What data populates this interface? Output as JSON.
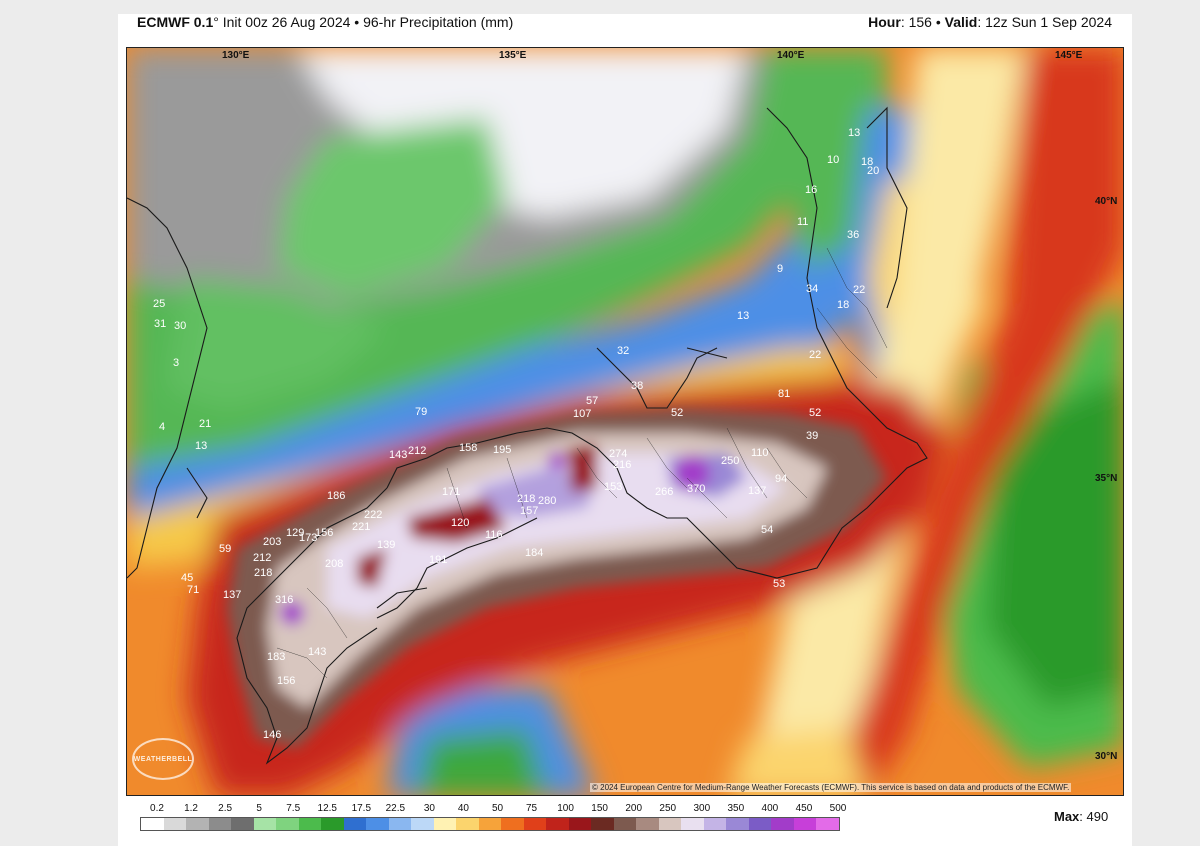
{
  "header": {
    "model": "ECMWF 0.1",
    "degree": "°",
    "init": "Init 00z 26 Aug 2024",
    "bullet": "•",
    "product": "96-hr Precipitation (mm)",
    "hour_label": "Hour",
    "hour_value": "156",
    "valid_label": "Valid",
    "valid_value": "12z Sun 1 Sep 2024"
  },
  "coords": {
    "lon_130": "130°E",
    "lon_135": "135°E",
    "lon_140": "140°E",
    "lon_145": "145°E",
    "lat_40": "40°N",
    "lat_35": "35°N",
    "lat_30": "30°N"
  },
  "map_values": [
    {
      "id": "v13a",
      "text": "13"
    },
    {
      "id": "v10",
      "text": "10"
    },
    {
      "id": "v18a",
      "text": "18"
    },
    {
      "id": "v20",
      "text": "20"
    },
    {
      "id": "v16",
      "text": "16"
    },
    {
      "id": "v11",
      "text": "11"
    },
    {
      "id": "v36",
      "text": "36"
    },
    {
      "id": "v9",
      "text": "9"
    },
    {
      "id": "v34",
      "text": "34"
    },
    {
      "id": "v22a",
      "text": "22"
    },
    {
      "id": "v18b",
      "text": "18"
    },
    {
      "id": "v13b",
      "text": "13"
    },
    {
      "id": "v22b",
      "text": "22"
    },
    {
      "id": "v25",
      "text": "25"
    },
    {
      "id": "v31",
      "text": "31"
    },
    {
      "id": "v30",
      "text": "30"
    },
    {
      "id": "v3",
      "text": "3"
    },
    {
      "id": "v32",
      "text": "32"
    },
    {
      "id": "v38",
      "text": "38"
    },
    {
      "id": "v81",
      "text": "81"
    },
    {
      "id": "v57",
      "text": "57"
    },
    {
      "id": "v107",
      "text": "107"
    },
    {
      "id": "v52a",
      "text": "52"
    },
    {
      "id": "v52b",
      "text": "52"
    },
    {
      "id": "v79",
      "text": "79"
    },
    {
      "id": "v39",
      "text": "39"
    },
    {
      "id": "v21",
      "text": "21"
    },
    {
      "id": "v4",
      "text": "4"
    },
    {
      "id": "v13c",
      "text": "13"
    },
    {
      "id": "v143a",
      "text": "143"
    },
    {
      "id": "v212",
      "text": "212"
    },
    {
      "id": "v158",
      "text": "158"
    },
    {
      "id": "v195",
      "text": "195"
    },
    {
      "id": "v274",
      "text": "274"
    },
    {
      "id": "v216a",
      "text": "216"
    },
    {
      "id": "v250",
      "text": "250"
    },
    {
      "id": "v110",
      "text": "110"
    },
    {
      "id": "v94",
      "text": "94"
    },
    {
      "id": "v370",
      "text": "370"
    },
    {
      "id": "v266",
      "text": "266"
    },
    {
      "id": "v153",
      "text": "153"
    },
    {
      "id": "v137a",
      "text": "137"
    },
    {
      "id": "v186",
      "text": "186"
    },
    {
      "id": "v171",
      "text": "171"
    },
    {
      "id": "v218a",
      "text": "218"
    },
    {
      "id": "v280",
      "text": "280"
    },
    {
      "id": "v157",
      "text": "157"
    },
    {
      "id": "v222",
      "text": "222"
    },
    {
      "id": "v221",
      "text": "221"
    },
    {
      "id": "v120",
      "text": "120"
    },
    {
      "id": "v116",
      "text": "116"
    },
    {
      "id": "v129",
      "text": "129"
    },
    {
      "id": "v156a",
      "text": "156"
    },
    {
      "id": "v173",
      "text": "173"
    },
    {
      "id": "v203",
      "text": "203"
    },
    {
      "id": "v139",
      "text": "139"
    },
    {
      "id": "v184",
      "text": "184"
    },
    {
      "id": "v59",
      "text": "59"
    },
    {
      "id": "v212b",
      "text": "212"
    },
    {
      "id": "v208",
      "text": "208"
    },
    {
      "id": "v191",
      "text": "191"
    },
    {
      "id": "v54",
      "text": "54"
    },
    {
      "id": "v218b",
      "text": "218"
    },
    {
      "id": "v45",
      "text": "45"
    },
    {
      "id": "v71",
      "text": "71"
    },
    {
      "id": "v137b",
      "text": "137"
    },
    {
      "id": "v316",
      "text": "316"
    },
    {
      "id": "v53",
      "text": "53"
    },
    {
      "id": "v183",
      "text": "183"
    },
    {
      "id": "v143b",
      "text": "143"
    },
    {
      "id": "v156b",
      "text": "156"
    },
    {
      "id": "v146",
      "text": "146"
    }
  ],
  "copyright": "© 2024 European Centre for Medium-Range Weather Forecasts (ECMWF). This service is based on data and products of the ECMWF.",
  "logo_text": "WEATHERBELL",
  "scale": {
    "ticks": [
      "0.2",
      "1.2",
      "2.5",
      "5",
      "7.5",
      "12.5",
      "17.5",
      "22.5",
      "30",
      "40",
      "50",
      "75",
      "100",
      "150",
      "200",
      "250",
      "300",
      "350",
      "400",
      "450",
      "500"
    ],
    "colors": [
      "#ffffff",
      "#d9d9d9",
      "#b3b3b3",
      "#8c8c8c",
      "#6e6e6e",
      "#a6e3a6",
      "#7fd37f",
      "#4cbb4c",
      "#2a9a2a",
      "#2f6fd0",
      "#4d8fe6",
      "#8ab7f0",
      "#bcd8f7",
      "#fff2b3",
      "#fbd46d",
      "#f6a33a",
      "#ef6f1f",
      "#e0401a",
      "#c0231b",
      "#99161b",
      "#6b2a22",
      "#7d5a4f",
      "#a88a80",
      "#d8c6bf",
      "#e9e0f0",
      "#c4b4e6",
      "#9a88d6",
      "#7b5cc6",
      "#a23cc9",
      "#c73fd9",
      "#e36be8"
    ]
  },
  "max_label": "Max",
  "max_value": "490"
}
